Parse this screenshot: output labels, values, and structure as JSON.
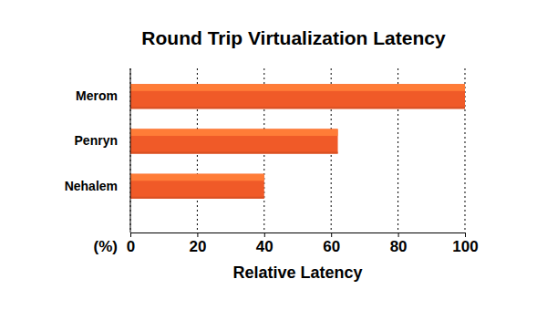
{
  "chart_data": {
    "type": "bar",
    "orientation": "horizontal",
    "title": "Round Trip Virtualization Latency",
    "xlabel": "Relative Latency",
    "annotations": [
      "(%)"
    ],
    "categories": [
      "Merom",
      "Penryn",
      "Nehalem"
    ],
    "values": [
      100,
      62,
      40
    ],
    "color": "#f05a28",
    "xlim": [
      0,
      100
    ],
    "xticks": [
      0,
      20,
      40,
      60,
      80,
      100
    ],
    "grid": true
  }
}
